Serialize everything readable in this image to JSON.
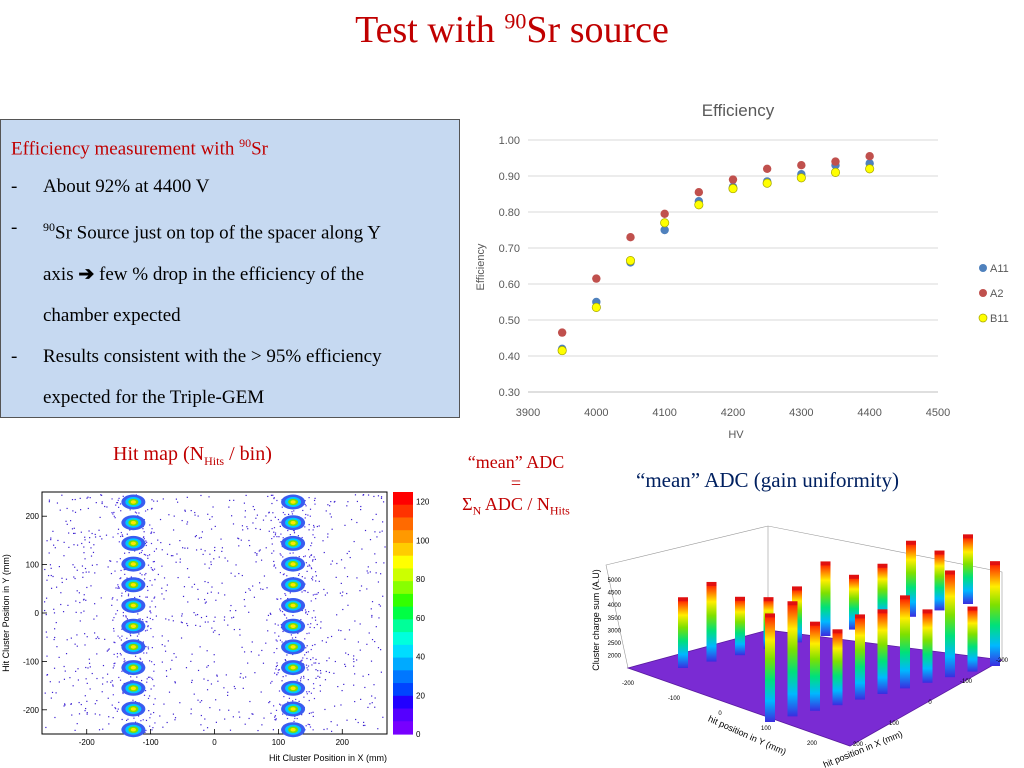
{
  "title": {
    "main": "Test with ",
    "sup": "90",
    "after": "Sr source"
  },
  "textbox": {
    "heading_pre": "Efficiency measurement with ",
    "heading_sup": "90",
    "heading_post": "Sr",
    "bullets": [
      {
        "dash": "-",
        "line1": "About 92% at 4400 V"
      },
      {
        "dash": "-",
        "sup": "90",
        "line1": "Sr Source just on top of the spacer along Y",
        "line2a": "axis ",
        "arrow": "➔",
        "line2b": " few % drop in the efficiency of the",
        "line3": "chamber expected"
      },
      {
        "dash": "-",
        "line1": "Results consistent with the > 95% efficiency",
        "line2": "expected for the Triple-GEM"
      }
    ]
  },
  "hitmap_label": {
    "pre": "Hit map (N",
    "sub": "Hits",
    "post": " / bin)"
  },
  "mean_adc_label": {
    "line1": "“mean” ADC",
    "line2": "=",
    "sigma": "Σ",
    "sub_n": "N",
    "mid": " ADC / N",
    "sub_hits": "Hits"
  },
  "gain_label": "“mean” ADC (gain uniformity)",
  "chart_data": [
    {
      "type": "scatter",
      "title": "Efficiency",
      "xlabel": "HV",
      "ylabel": "Efficiency",
      "xlim": [
        3900,
        4500
      ],
      "ylim": [
        0.3,
        1.0
      ],
      "xticks": [
        "3900",
        "4000",
        "4100",
        "4200",
        "4300",
        "4400",
        "4500"
      ],
      "yticks": [
        "0.30",
        "0.40",
        "0.50",
        "0.60",
        "0.70",
        "0.80",
        "0.90",
        "1.00"
      ],
      "grid": true,
      "legend_position": "right",
      "x": [
        3950,
        4000,
        4050,
        4100,
        4150,
        4200,
        4250,
        4300,
        4350,
        4400
      ],
      "series": [
        {
          "name": "A11",
          "color": "#4f81bd",
          "values": [
            0.42,
            0.55,
            0.66,
            0.75,
            0.83,
            0.87,
            0.885,
            0.905,
            0.93,
            0.935
          ]
        },
        {
          "name": "A2",
          "color": "#c0504d",
          "values": [
            0.465,
            0.615,
            0.73,
            0.795,
            0.855,
            0.89,
            0.92,
            0.93,
            0.94,
            0.955
          ]
        },
        {
          "name": "B11",
          "color": "#ffff00",
          "values": [
            0.415,
            0.535,
            0.665,
            0.77,
            0.82,
            0.865,
            0.88,
            0.895,
            0.91,
            0.92
          ]
        }
      ]
    },
    {
      "type": "heatmap",
      "xlabel": "Hit Cluster Position in X (mm)",
      "ylabel": "Hit Cluster Position in Y (mm)",
      "xticks": [
        "-200",
        "-100",
        "0",
        "100",
        "200"
      ],
      "yticks": [
        "200",
        "100",
        "0",
        "-100",
        "-200"
      ],
      "zticks": [
        "120",
        "100",
        "80",
        "60",
        "40",
        "20",
        "0"
      ],
      "zlim": [
        0,
        125
      ]
    },
    {
      "type": "surface3d",
      "zlabel": "Cluster charge sum (A.U)",
      "xlabel": "hit position in X (mm)",
      "ylabel": "hit position in Y (mm)",
      "zticks": [
        "5000",
        "4500",
        "4000",
        "3500",
        "3000",
        "2500",
        "2000"
      ],
      "yticks": [
        "-200",
        "-100",
        "0",
        "100",
        "200"
      ],
      "xticks": [
        "200",
        "100",
        "0",
        "-100",
        "-200"
      ]
    }
  ]
}
